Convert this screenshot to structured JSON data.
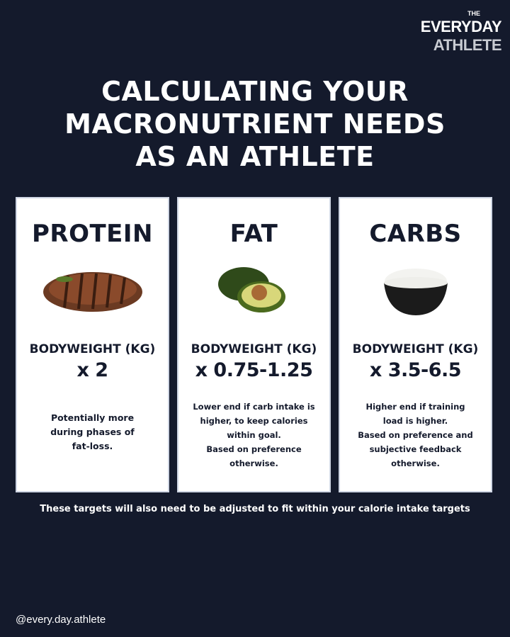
{
  "brand": {
    "the": "THE",
    "line1": "EVERYDAY",
    "line2": "ATHLETE"
  },
  "title": [
    "CALCULATING YOUR",
    "MACRONUTRIENT NEEDS",
    "AS AN ATHLETE"
  ],
  "cards": [
    {
      "heading": "PROTEIN",
      "food_icon": "steak",
      "label": "BODYWEIGHT (KG)",
      "multiplier": "x 2",
      "note": [
        "Potentially more",
        "during phases of",
        "fat-loss."
      ]
    },
    {
      "heading": "FAT",
      "food_icon": "avocado",
      "label": "BODYWEIGHT (KG)",
      "multiplier": "x 0.75-1.25",
      "note": [
        "Lower end if carb intake is",
        "higher, to keep calories",
        "within goal.",
        "Based on preference",
        "otherwise."
      ]
    },
    {
      "heading": "CARBS",
      "food_icon": "rice-bowl",
      "label": "BODYWEIGHT (KG)",
      "multiplier": "x 3.5-6.5",
      "note": [
        "Higher end if training",
        "load is higher.",
        "Based on preference and",
        "subjective feedback",
        "otherwise."
      ]
    }
  ],
  "footer": "These targets will also need to be adjusted to fit within your calorie intake targets",
  "handle": "@every.day.athlete",
  "colors": {
    "background": "#141a2c",
    "card": "#ffffff"
  }
}
